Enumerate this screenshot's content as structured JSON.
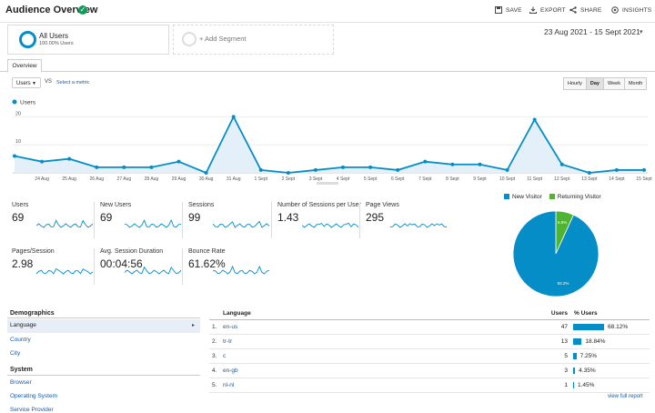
{
  "header": {
    "title": "Audience Overview",
    "actions": [
      {
        "label": "SAVE",
        "icon": "save-icon"
      },
      {
        "label": "EXPORT",
        "icon": "export-icon"
      },
      {
        "label": "SHARE",
        "icon": "share-icon"
      },
      {
        "label": "INSIGHTS",
        "icon": "insights-icon"
      }
    ]
  },
  "segments": {
    "primary": {
      "name": "All Users",
      "sub": "100.00% Users"
    },
    "add_label": "+ Add Segment"
  },
  "date_range": "23 Aug 2021 - 15 Sept 2021",
  "tabs": [
    "Overview"
  ],
  "controls": {
    "metric": "Users",
    "vs": "VS",
    "select_metric": "Select a metric",
    "granularity": [
      "Hourly",
      "Day",
      "Week",
      "Month"
    ],
    "active_granularity": "Day"
  },
  "chart_data": {
    "type": "line",
    "series": [
      {
        "name": "Users",
        "values": [
          6,
          4,
          5,
          2,
          2,
          2,
          4,
          0,
          20,
          1,
          0,
          1,
          2,
          2,
          1,
          4,
          3,
          3,
          1,
          19,
          3,
          0,
          1,
          1
        ]
      }
    ],
    "x_ticks": [
      "24 Aug",
      "25 Aug",
      "26 Aug",
      "27 Aug",
      "28 Aug",
      "29 Aug",
      "30 Aug",
      "31 Aug",
      "1 Sept",
      "2 Sept",
      "3 Sept",
      "4 Sept",
      "5 Sept",
      "6 Sept",
      "7 Sept",
      "8 Sept",
      "9 Sept",
      "10 Sept",
      "11 Sept",
      "12 Sept",
      "13 Sept",
      "14 Sept",
      "15 Sept"
    ],
    "y_ticks": [
      "20",
      "10"
    ],
    "ylim": [
      0,
      25
    ],
    "color": "#058dc7"
  },
  "scorecards": [
    {
      "label": "Users",
      "value": "69"
    },
    {
      "label": "New Users",
      "value": "69"
    },
    {
      "label": "Sessions",
      "value": "99"
    },
    {
      "label": "Number of Sessions per User",
      "value": "1.43"
    },
    {
      "label": "Page Views",
      "value": "295"
    },
    {
      "label": "Pages/Session",
      "value": "2.98"
    },
    {
      "label": "Avg. Session Duration",
      "value": "00:04:56"
    },
    {
      "label": "Bounce Rate",
      "value": "61.62%"
    }
  ],
  "pie": {
    "legend": [
      {
        "label": "New Visitor",
        "color": "#058dc7"
      },
      {
        "label": "Returning Visitor",
        "color": "#50b432"
      }
    ],
    "slices": [
      {
        "name": "New Visitor",
        "value": 93.2,
        "label": "93.2%",
        "color": "#058dc7"
      },
      {
        "name": "Returning Visitor",
        "value": 6.8,
        "label": "6.8%",
        "color": "#50b432"
      }
    ]
  },
  "demographics": {
    "title": "Demographics",
    "items": [
      "Language",
      "Country",
      "City"
    ],
    "active": "Language",
    "system_title": "System",
    "system_items": [
      "Browser",
      "Operating System",
      "Service Provider"
    ]
  },
  "language_table": {
    "headers": {
      "name": "Language",
      "users": "Users",
      "pct": "% Users"
    },
    "rows": [
      {
        "num": "1.",
        "lang": "en-us",
        "users": "47",
        "pct": "68.12%",
        "frac": 0.6812
      },
      {
        "num": "2.",
        "lang": "tr-tr",
        "users": "13",
        "pct": "18.84%",
        "frac": 0.1884
      },
      {
        "num": "3.",
        "lang": "c",
        "users": "5",
        "pct": "7.25%",
        "frac": 0.0725
      },
      {
        "num": "4.",
        "lang": "en-gb",
        "users": "3",
        "pct": "4.35%",
        "frac": 0.0435
      },
      {
        "num": "5.",
        "lang": "nl-nl",
        "users": "1",
        "pct": "1.45%",
        "frac": 0.0145
      }
    ],
    "view_full": "view full report"
  }
}
